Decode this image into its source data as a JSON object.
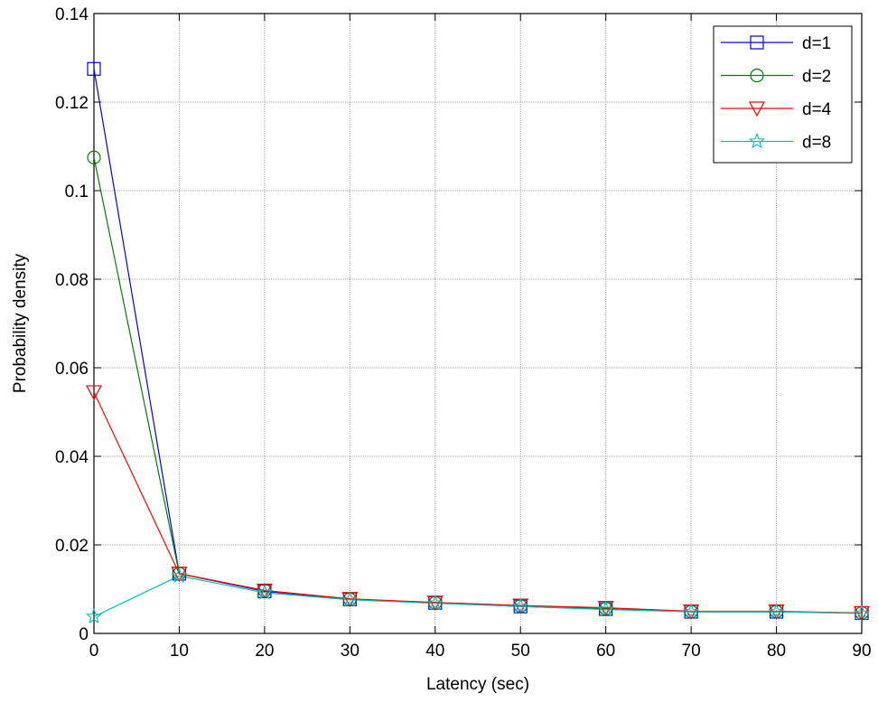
{
  "chart_data": {
    "type": "line",
    "title": "",
    "xlabel": "Latency (sec)",
    "ylabel": "Probability density",
    "xlim": [
      0,
      90
    ],
    "ylim": [
      0,
      0.14
    ],
    "x_ticks": [
      "0",
      "10",
      "20",
      "30",
      "40",
      "50",
      "60",
      "70",
      "80",
      "90"
    ],
    "y_ticks": [
      "0",
      "0.02",
      "0.04",
      "0.06",
      "0.08",
      "0.1",
      "0.12",
      "0.14"
    ],
    "grid": true,
    "legend_position": "top-right",
    "x": [
      0,
      10,
      20,
      30,
      40,
      50,
      60,
      70,
      80,
      90
    ],
    "series": [
      {
        "name": "d=1",
        "color": "#0000ff",
        "marker": "square",
        "values": [
          0.1275,
          0.0135,
          0.0095,
          0.0077,
          0.0069,
          0.0061,
          0.0055,
          0.0049,
          0.0049,
          0.0046
        ]
      },
      {
        "name": "d=2",
        "color": "#008000",
        "marker": "circle",
        "values": [
          0.1075,
          0.0135,
          0.0097,
          0.0077,
          0.0069,
          0.0062,
          0.0056,
          0.0049,
          0.0049,
          0.0046
        ]
      },
      {
        "name": "d=4",
        "color": "#ff0000",
        "marker": "triangle-down",
        "values": [
          0.0545,
          0.0135,
          0.0097,
          0.0078,
          0.007,
          0.0063,
          0.0058,
          0.005,
          0.005,
          0.0046
        ]
      },
      {
        "name": "d=8",
        "color": "#00bfbf",
        "marker": "star",
        "values": [
          0.0038,
          0.013,
          0.0092,
          0.0076,
          0.0068,
          0.0061,
          0.0054,
          0.0049,
          0.0049,
          0.0045
        ]
      }
    ]
  }
}
